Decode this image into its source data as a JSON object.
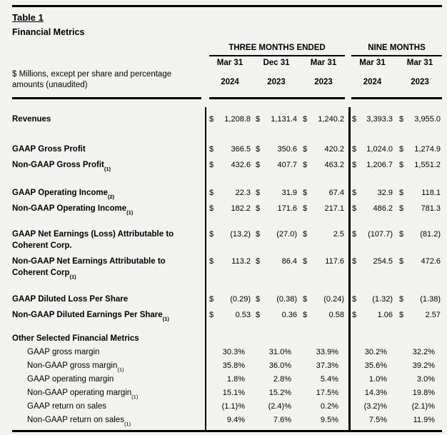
{
  "meta": {
    "currency_symbol": "$",
    "background_color": "#f2f2f0",
    "line_color": "#000000"
  },
  "title": {
    "table_label": "Table 1",
    "subtitle": "Financial Metrics",
    "units_note": "$ Millions, except per share and percentage amounts (unaudited)"
  },
  "header": {
    "groups": [
      {
        "label": "THREE MONTHS ENDED"
      },
      {
        "label": "NINE MONTHS"
      }
    ],
    "columns": [
      {
        "month": "Mar 31",
        "year": "2024"
      },
      {
        "month": "Dec 31",
        "year": "2023"
      },
      {
        "month": "Mar 31",
        "year": "2023"
      },
      {
        "month": "Mar 31",
        "year": "2024"
      },
      {
        "month": "Mar 31",
        "year": "2023"
      }
    ]
  },
  "rows": [
    {
      "style": "money",
      "label": "Revenues",
      "values": [
        "1,208.8",
        "1,131.4",
        "1,240.2",
        "3,393.3",
        "3,955.0"
      ]
    },
    {
      "style": "money",
      "label": "GAAP Gross Profit",
      "values": [
        "366.5",
        "350.6",
        "420.2",
        "1,024.0",
        "1,274.9"
      ]
    },
    {
      "style": "money",
      "label": "Non-GAAP Gross Profit",
      "sub": "(1)",
      "values": [
        "432.6",
        "407.7",
        "463.2",
        "1,206.7",
        "1,551.2"
      ]
    },
    {
      "style": "money",
      "label": "GAAP Operating Income",
      "sub": "(2)",
      "values": [
        "22.3",
        "31.9",
        "67.4",
        "32.9",
        "118.1"
      ]
    },
    {
      "style": "money",
      "label": "Non-GAAP Operating Income",
      "sub": "(1)",
      "values": [
        "182.2",
        "171.6",
        "217.1",
        "486.2",
        "781.3"
      ]
    },
    {
      "style": "money",
      "label": "GAAP Net Earnings (Loss) Attributable to",
      "label2": "Coherent Corp.",
      "values": [
        "(13.2)",
        "(27.0)",
        "2.5",
        "(107.7)",
        "(81.2)"
      ]
    },
    {
      "style": "money",
      "label": "Non-GAAP Net Earnings Attributable to",
      "label2": "Coherent Corp",
      "sub2": "(1)",
      "values": [
        "113.2",
        "86.4",
        "117.6",
        "254.5",
        "472.6"
      ]
    },
    {
      "style": "money",
      "label": "GAAP Diluted Loss Per Share",
      "values": [
        "(0.29)",
        "(0.38)",
        "(0.24)",
        "(1.32)",
        "(1.38)"
      ]
    },
    {
      "style": "money",
      "label": "Non-GAAP Diluted Earnings Per Share",
      "sub": "(1)",
      "values": [
        "0.53",
        "0.36",
        "0.58",
        "1.06",
        "2.57"
      ]
    },
    {
      "style": "section",
      "label": "Other Selected Financial Metrics"
    },
    {
      "style": "percent",
      "label": "GAAP gross margin",
      "values": [
        "30.3%",
        "31.0%",
        "33.9%",
        "30.2%",
        "32.2%"
      ]
    },
    {
      "style": "percent",
      "label": "Non-GAAP gross margin",
      "sub": "(1)",
      "values": [
        "35.8%",
        "36.0%",
        "37.3%",
        "35.6%",
        "39.2%"
      ]
    },
    {
      "style": "percent",
      "label": "GAAP operating margin",
      "values": [
        "1.8%",
        "2.8%",
        "5.4%",
        "1.0%",
        "3.0%"
      ]
    },
    {
      "style": "percent",
      "label": "Non-GAAP operating margin",
      "sub": "(1)",
      "values": [
        "15.1%",
        "15.2%",
        "17.5%",
        "14.3%",
        "19.8%"
      ]
    },
    {
      "style": "percent",
      "label": "GAAP return on sales",
      "values": [
        "(1.1)%",
        "(2.4)%",
        "0.2%",
        "(3.2)%",
        "(2.1)%"
      ]
    },
    {
      "style": "percent",
      "label": "Non-GAAP return on sales",
      "sub": "(1)",
      "values": [
        "9.4%",
        "7.6%",
        "9.5%",
        "7.5%",
        "11.9%"
      ]
    }
  ]
}
